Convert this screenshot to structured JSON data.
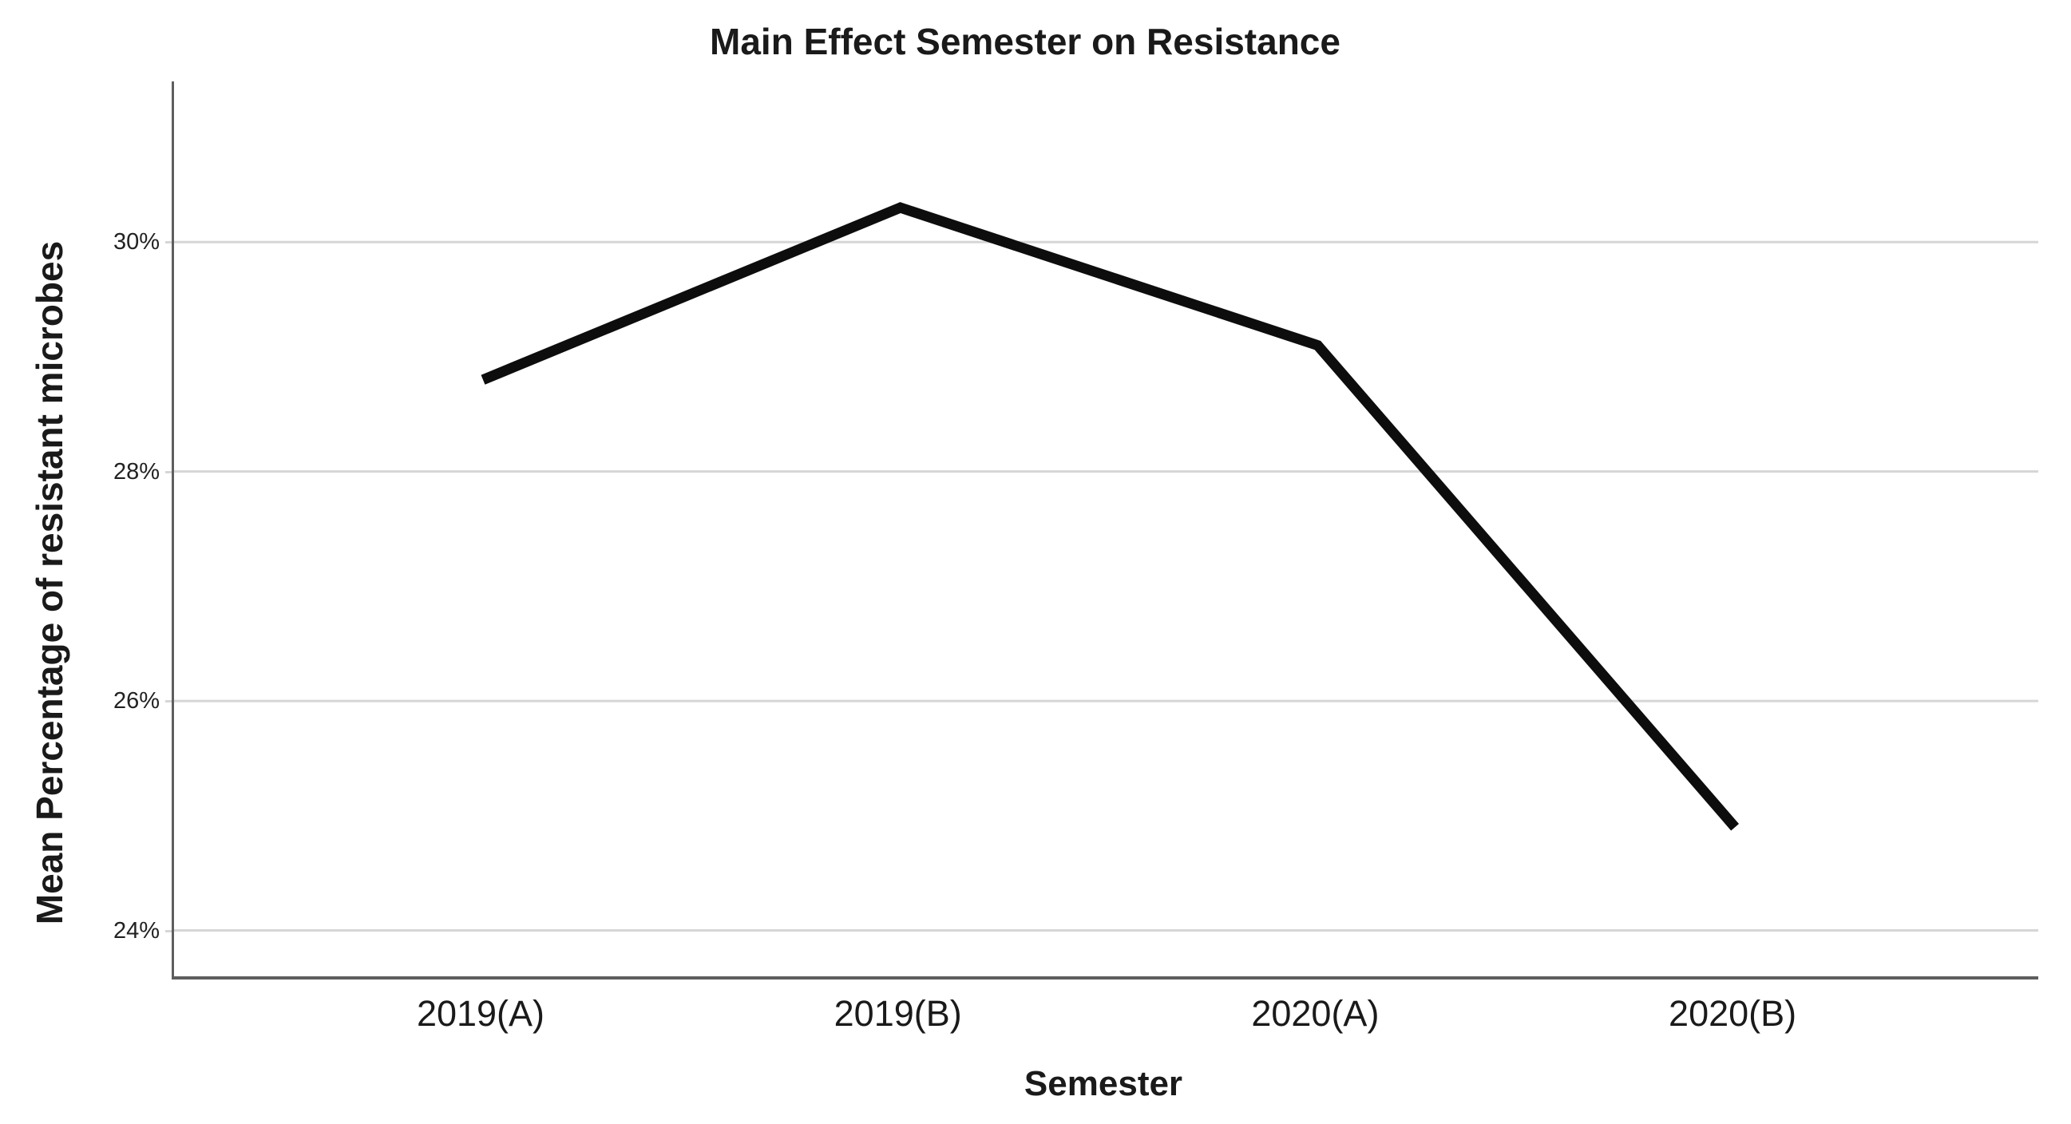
{
  "chart_data": {
    "type": "line",
    "title": "Main Effect Semester on Resistance",
    "xlabel": "Semester",
    "ylabel": "Mean Percentage of resistant microbes",
    "categories": [
      "2019(A)",
      "2019(B)",
      "2020(A)",
      "2020(B)"
    ],
    "values": [
      28.8,
      30.3,
      29.1,
      24.9
    ],
    "yticks": [
      {
        "value": 30,
        "label": "30%"
      },
      {
        "value": 28,
        "label": "28%"
      },
      {
        "value": 26,
        "label": "26%"
      },
      {
        "value": 24,
        "label": "24%"
      }
    ],
    "ylim": [
      23.6,
      31.4
    ],
    "grid": "horizontal",
    "legend": "none",
    "colors": {
      "line": "#0d0d0d",
      "gridline": "#d6d6d6",
      "axis": "#5e5e5e",
      "text": "#1a1a1a"
    }
  }
}
